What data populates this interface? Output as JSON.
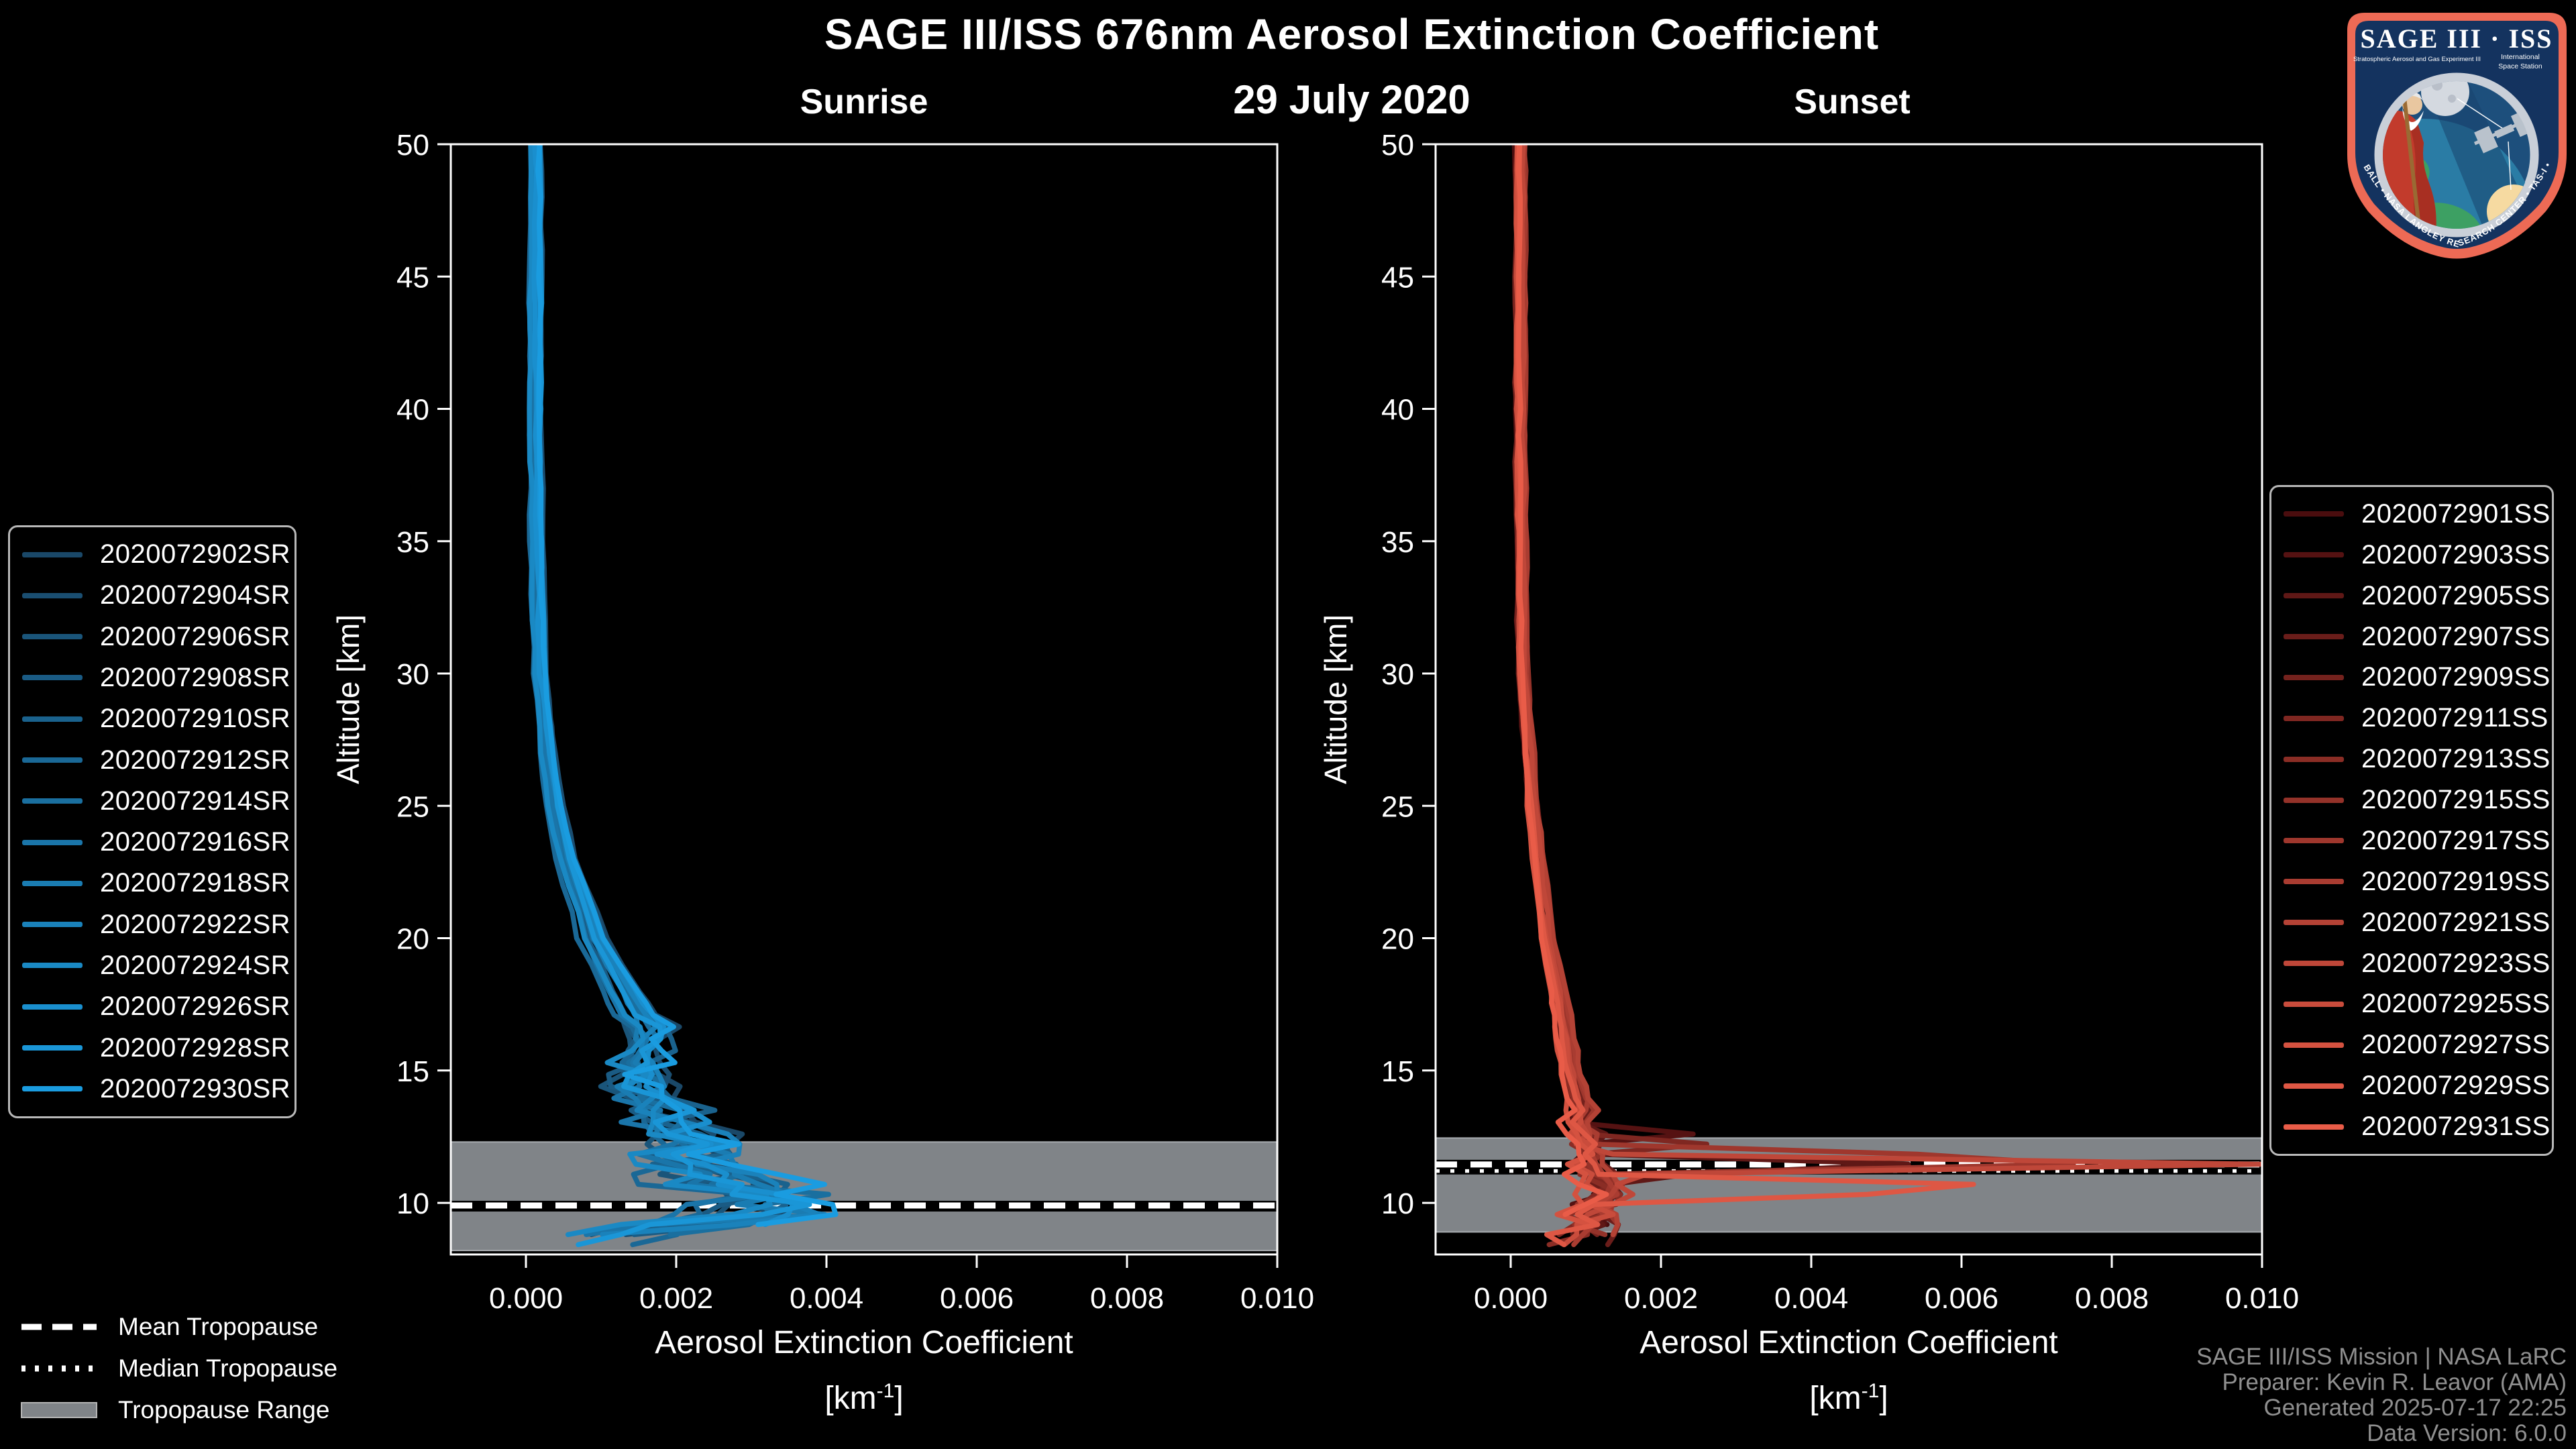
{
  "header": {
    "title": "SAGE III/ISS 676nm Aerosol Extinction Coefficient",
    "date": "29 July 2020",
    "sunrise_label": "Sunrise",
    "sunset_label": "Sunset"
  },
  "axes": {
    "ylabel": "Altitude [km]",
    "xlabel": "Aerosol Extinction Coefficient",
    "unit_prefix": "[km",
    "unit_power": "-1",
    "unit_suffix": "]"
  },
  "colors": {
    "background": "#000000",
    "axis": "#ffffff",
    "band_fill": "#808488",
    "band_edge": "#a8acb0",
    "legend_border": "#b8b8b8",
    "credits_text": "#8f8f8f",
    "tropopause_line": "#ffffff",
    "tropopause_underlay": "#000000"
  },
  "chart_data": [
    {
      "type": "line",
      "title": "Sunrise",
      "xlabel": "Aerosol Extinction Coefficient [km-1]",
      "ylabel": "Altitude [km]",
      "xlim": [
        -0.001,
        0.01
      ],
      "ylim": [
        8.05,
        50
      ],
      "x_ticks": [
        0.0,
        0.002,
        0.004,
        0.006,
        0.008,
        0.01
      ],
      "x_tick_labels": [
        "0.000",
        "0.002",
        "0.004",
        "0.006",
        "0.008",
        "0.010"
      ],
      "y_ticks": [
        10,
        15,
        20,
        25,
        30,
        35,
        40,
        45,
        50
      ],
      "grid": false,
      "legend_position": "outside-left",
      "tropopause": {
        "mean": 9.9,
        "median": 9.85,
        "range": [
          8.2,
          12.3
        ]
      },
      "base_profile": [
        [
          8.2,
          0.0012
        ],
        [
          8.6,
          0.001
        ],
        [
          9.0,
          0.0015
        ],
        [
          9.4,
          0.0025
        ],
        [
          9.7,
          0.0032
        ],
        [
          10.0,
          0.003
        ],
        [
          10.5,
          0.0028
        ],
        [
          11.0,
          0.0024
        ],
        [
          11.5,
          0.002
        ],
        [
          12.0,
          0.0022
        ],
        [
          12.5,
          0.002
        ],
        [
          13.0,
          0.0018
        ],
        [
          14.0,
          0.0016
        ],
        [
          15.0,
          0.0014
        ],
        [
          16.0,
          0.0015
        ],
        [
          16.5,
          0.0016
        ],
        [
          17.0,
          0.0014
        ],
        [
          18.0,
          0.0012
        ],
        [
          19.0,
          0.001
        ],
        [
          20.0,
          0.0008
        ],
        [
          21.0,
          0.0007
        ],
        [
          23.0,
          0.00045
        ],
        [
          25.0,
          0.0003
        ],
        [
          27.0,
          0.0002
        ],
        [
          30.0,
          0.0001
        ],
        [
          35.0,
          5e-05
        ],
        [
          40.0,
          4e-05
        ],
        [
          50.0,
          4e-05
        ]
      ],
      "jitter": {
        "start_alt": 16.8,
        "base_amp": 0.0002,
        "slope": 0.00013,
        "max_amp": 0.00115
      },
      "series": [
        {
          "name": "2020072902SR",
          "color": "#1a4868",
          "seed": 11,
          "spike": null
        },
        {
          "name": "2020072904SR",
          "color": "#1a4e71",
          "seed": 12,
          "spike": null
        },
        {
          "name": "2020072906SR",
          "color": "#1a557a",
          "seed": 13,
          "spike": null
        },
        {
          "name": "2020072908SR",
          "color": "#1a5b84",
          "seed": 14,
          "spike": {
            "alt": 11.0,
            "x": 0.0035,
            "w": 0.6
          }
        },
        {
          "name": "2020072910SR",
          "color": "#1a628d",
          "seed": 15,
          "spike": null
        },
        {
          "name": "2020072912SR",
          "color": "#1a6896",
          "seed": 16,
          "spike": null
        },
        {
          "name": "2020072914SR",
          "color": "#1a6f9f",
          "seed": 17,
          "spike": null
        },
        {
          "name": "2020072916SR",
          "color": "#1a75a9",
          "seed": 18,
          "spike": null
        },
        {
          "name": "2020072918SR",
          "color": "#1a7cb2",
          "seed": 19,
          "spike": null
        },
        {
          "name": "2020072922SR",
          "color": "#1a82bb",
          "seed": 20,
          "spike": {
            "alt": 10.8,
            "x": 0.0037,
            "w": 0.6
          }
        },
        {
          "name": "2020072924SR",
          "color": "#1a89c4",
          "seed": 21,
          "spike": null
        },
        {
          "name": "2020072926SR",
          "color": "#1a8fce",
          "seed": 22,
          "spike": null
        },
        {
          "name": "2020072928SR",
          "color": "#1a96d7",
          "seed": 23,
          "spike": {
            "alt": 9.7,
            "x": 0.0041,
            "w": 0.6
          }
        },
        {
          "name": "2020072930SR",
          "color": "#1a9ce0",
          "seed": 24,
          "spike": {
            "alt": 10.2,
            "x": 0.004,
            "w": 0.7
          }
        }
      ]
    },
    {
      "type": "line",
      "title": "Sunset",
      "xlabel": "Aerosol Extinction Coefficient [km-1]",
      "ylabel": "Altitude [km]",
      "xlim": [
        -0.001,
        0.01
      ],
      "ylim": [
        8.05,
        50
      ],
      "x_ticks": [
        0.0,
        0.002,
        0.004,
        0.006,
        0.008,
        0.01
      ],
      "x_tick_labels": [
        "0.000",
        "0.002",
        "0.004",
        "0.006",
        "0.008",
        "0.010"
      ],
      "y_ticks": [
        10,
        15,
        20,
        25,
        30,
        35,
        40,
        45,
        50
      ],
      "grid": false,
      "legend_position": "outside-right",
      "tropopause": {
        "mean": 11.45,
        "median": 11.25,
        "range": [
          8.9,
          12.45
        ]
      },
      "base_profile": [
        [
          8.2,
          0.0009
        ],
        [
          8.6,
          0.0008
        ],
        [
          9.0,
          0.0009
        ],
        [
          9.5,
          0.001
        ],
        [
          10.0,
          0.0011
        ],
        [
          10.5,
          0.0012
        ],
        [
          11.0,
          0.0011
        ],
        [
          11.5,
          0.0009
        ],
        [
          12.0,
          0.001
        ],
        [
          12.5,
          0.0009
        ],
        [
          13.0,
          0.0008
        ],
        [
          13.5,
          0.00085
        ],
        [
          14.0,
          0.0008
        ],
        [
          15.0,
          0.0007
        ],
        [
          17.0,
          0.0006
        ],
        [
          20.0,
          0.0004
        ],
        [
          25.0,
          0.0002
        ],
        [
          30.0,
          7e-05
        ],
        [
          40.0,
          4e-05
        ],
        [
          50.0,
          4e-05
        ]
      ],
      "jitter": {
        "start_alt": 13.8,
        "base_amp": 0.00012,
        "slope": 9e-05,
        "max_amp": 0.00055
      },
      "series": [
        {
          "name": "2020072901SS",
          "color": "#4a0d0e",
          "seed": 31,
          "spike": null
        },
        {
          "name": "2020072903SS",
          "color": "#551212",
          "seed": 32,
          "spike": {
            "alt": 12.7,
            "x": 0.0034,
            "w": 0.35
          }
        },
        {
          "name": "2020072905SS",
          "color": "#5f1816",
          "seed": 33,
          "spike": {
            "alt": 11.35,
            "x": 0.0073,
            "w": 0.4
          }
        },
        {
          "name": "2020072907SS",
          "color": "#6a1d1a",
          "seed": 34,
          "spike": null
        },
        {
          "name": "2020072909SS",
          "color": "#74221d",
          "seed": 35,
          "spike": null
        },
        {
          "name": "2020072911SS",
          "color": "#7f2721",
          "seed": 36,
          "spike": {
            "alt": 12.25,
            "x": 0.0029,
            "w": 0.3
          }
        },
        {
          "name": "2020072913SS",
          "color": "#8a2d25",
          "seed": 37,
          "spike": null
        },
        {
          "name": "2020072915SS",
          "color": "#943229",
          "seed": 38,
          "spike": null
        },
        {
          "name": "2020072917SS",
          "color": "#9f372d",
          "seed": 39,
          "spike": {
            "alt": 11.6,
            "x": 0.0104,
            "w": 0.5
          }
        },
        {
          "name": "2020072919SS",
          "color": "#a93c31",
          "seed": 40,
          "spike": null
        },
        {
          "name": "2020072921SS",
          "color": "#b44235",
          "seed": 41,
          "spike": null
        },
        {
          "name": "2020072923SS",
          "color": "#bf4739",
          "seed": 42,
          "spike": {
            "alt": 11.45,
            "x": 0.0102,
            "w": 0.45
          }
        },
        {
          "name": "2020072925SS",
          "color": "#c94c3c",
          "seed": 43,
          "spike": null
        },
        {
          "name": "2020072927SS",
          "color": "#d45240",
          "seed": 44,
          "spike": null
        },
        {
          "name": "2020072929SS",
          "color": "#de5744",
          "seed": 45,
          "spike": {
            "alt": 10.55,
            "x": 0.0088,
            "w": 0.5
          }
        },
        {
          "name": "2020072931SS",
          "color": "#e95c48",
          "seed": 46,
          "spike": null
        }
      ]
    }
  ],
  "tropopause_legend": {
    "items": [
      {
        "label": "Mean Tropopause",
        "style": "dashed"
      },
      {
        "label": "Median Tropopause",
        "style": "dotted"
      },
      {
        "label": "Tropopause Range",
        "style": "band"
      }
    ]
  },
  "credits": {
    "lines": [
      "SAGE III/ISS Mission | NASA LaRC",
      "Preparer: Kevin R. Leavor (AMA)",
      "Generated 2025-07-17 22:25",
      "Data Version: 6.0.0"
    ]
  },
  "logo": {
    "title": "SAGE III · ISS",
    "subtitle_left": "Stratospheric Aerosol and Gas Experiment III",
    "subtitle_right1": "International",
    "subtitle_right2": "Space Station",
    "ring_text": "BALL • NASA LANGLEY RESEARCH CENTER • TAS-I • ESA",
    "border_color": "#ed6a55",
    "field_color": "#14335f"
  }
}
